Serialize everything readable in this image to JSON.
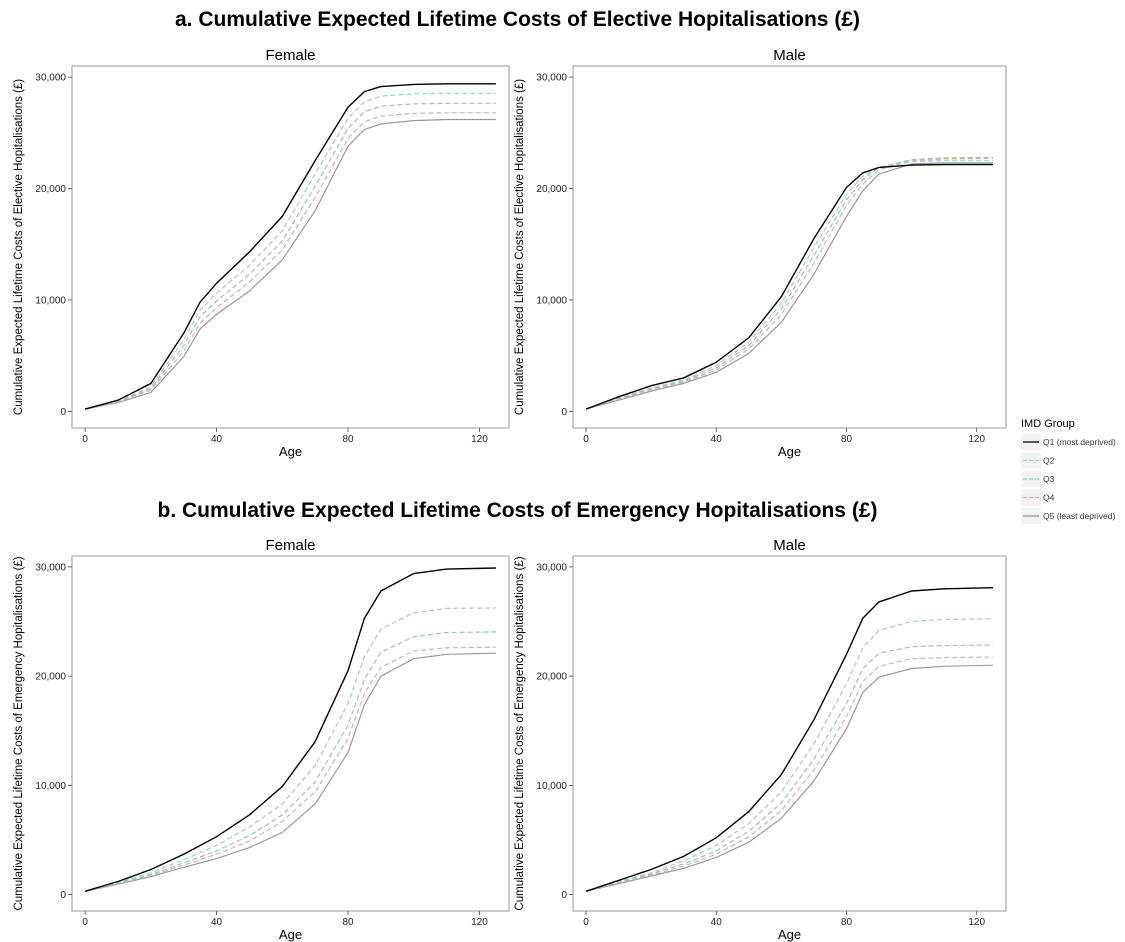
{
  "titles": {
    "a": "a. Cumulative Expected Lifetime Costs of Elective Hopitalisations (£)",
    "b": "b. Cumulative Expected Lifetime Costs of Emergency Hopitalisations (£)"
  },
  "legend": {
    "title": "IMD Group",
    "items": [
      {
        "label": "Q1 (most deprived)",
        "color": "#000000",
        "dash": "solid"
      },
      {
        "label": "Q2",
        "color": "#9ec9e8",
        "dash": "dashed"
      },
      {
        "label": "Q3",
        "color": "#8fd18f",
        "dash": "dashed"
      },
      {
        "label": "Q4",
        "color": "#e0a8b8",
        "dash": "dashed"
      },
      {
        "label": "Q5 (least deprived)",
        "color": "#999999",
        "dash": "solid"
      }
    ]
  },
  "chart_data": [
    {
      "type": "line",
      "group": "a",
      "facet": "Female",
      "xlabel": "Age",
      "ylabel": "Cumulative Expected Lifetime Costs of Elective Hopitalisations (£)",
      "xlim": [
        -4,
        129
      ],
      "ylim": [
        -1500,
        31000
      ],
      "xticks": [
        0,
        40,
        80,
        120
      ],
      "yticks": [
        0,
        10000,
        20000,
        30000
      ],
      "ytick_labels": [
        "0",
        "10,000",
        "20,000",
        "30,000"
      ],
      "x": [
        0,
        10,
        20,
        30,
        35,
        40,
        50,
        60,
        70,
        80,
        85,
        90,
        100,
        110,
        125
      ],
      "series": [
        {
          "name": "Q1 (most deprived)",
          "values": [
            200,
            1000,
            2500,
            7000,
            9800,
            11500,
            14300,
            17500,
            22500,
            27300,
            28700,
            29150,
            29350,
            29400,
            29400
          ]
        },
        {
          "name": "Q2",
          "values": [
            200,
            900,
            2200,
            6400,
            9100,
            10600,
            13100,
            16200,
            21300,
            26300,
            27800,
            28300,
            28500,
            28550,
            28550
          ]
        },
        {
          "name": "Q3",
          "values": [
            200,
            870,
            2050,
            5900,
            8500,
            9900,
            12300,
            15300,
            20200,
            25400,
            26900,
            27400,
            27600,
            27650,
            27650
          ]
        },
        {
          "name": "Q4",
          "values": [
            200,
            830,
            1900,
            5400,
            7900,
            9300,
            11600,
            14500,
            19200,
            24500,
            26000,
            26500,
            26750,
            26800,
            26800
          ]
        },
        {
          "name": "Q5 (least deprived)",
          "values": [
            200,
            780,
            1700,
            4900,
            7400,
            8700,
            10800,
            13600,
            18000,
            23800,
            25300,
            25800,
            26100,
            26200,
            26200
          ]
        }
      ]
    },
    {
      "type": "line",
      "group": "a",
      "facet": "Male",
      "xlabel": "Age",
      "ylabel": "Cumulative Expected Lifetime Costs of Elective Hopitalisations (£)",
      "xlim": [
        -4,
        129
      ],
      "ylim": [
        -1500,
        31000
      ],
      "xticks": [
        0,
        40,
        80,
        120
      ],
      "yticks": [
        0,
        10000,
        20000,
        30000
      ],
      "ytick_labels": [
        "0",
        "10,000",
        "20,000",
        "30,000"
      ],
      "x": [
        0,
        10,
        20,
        30,
        40,
        50,
        60,
        70,
        80,
        85,
        90,
        100,
        110,
        125
      ],
      "series": [
        {
          "name": "Q1 (most deprived)",
          "values": [
            200,
            1300,
            2300,
            3000,
            4400,
            6600,
            10300,
            15500,
            20100,
            21400,
            21900,
            22100,
            22150,
            22150
          ]
        },
        {
          "name": "Q2",
          "values": [
            200,
            1200,
            2100,
            2800,
            4100,
            6200,
            9700,
            14700,
            19500,
            21100,
            21900,
            22400,
            22500,
            22500
          ]
        },
        {
          "name": "Q3",
          "values": [
            200,
            1150,
            2000,
            2700,
            3900,
            5900,
            9200,
            14000,
            19000,
            20800,
            21900,
            22600,
            22750,
            22800
          ]
        },
        {
          "name": "Q4",
          "values": [
            200,
            1100,
            1900,
            2600,
            3700,
            5600,
            8700,
            13300,
            18500,
            20400,
            21700,
            22500,
            22650,
            22700
          ]
        },
        {
          "name": "Q5 (least deprived)",
          "values": [
            200,
            1000,
            1800,
            2500,
            3500,
            5200,
            8000,
            12300,
            17500,
            19800,
            21300,
            22200,
            22300,
            22300
          ]
        }
      ]
    },
    {
      "type": "line",
      "group": "b",
      "facet": "Female",
      "xlabel": "Age",
      "ylabel": "Cumulative Expected Lifetime Costs of Emergency Hopitalisations (£)",
      "xlim": [
        -4,
        129
      ],
      "ylim": [
        -1500,
        31000
      ],
      "xticks": [
        0,
        40,
        80,
        120
      ],
      "yticks": [
        0,
        10000,
        20000,
        30000
      ],
      "ytick_labels": [
        "0",
        "10,000",
        "20,000",
        "30,000"
      ],
      "x": [
        0,
        10,
        20,
        30,
        40,
        50,
        60,
        70,
        80,
        85,
        90,
        100,
        110,
        125
      ],
      "series": [
        {
          "name": "Q1 (most deprived)",
          "values": [
            300,
            1200,
            2300,
            3700,
            5300,
            7300,
            9900,
            14000,
            20500,
            25300,
            27800,
            29400,
            29800,
            29900
          ]
        },
        {
          "name": "Q2",
          "values": [
            300,
            1100,
            2000,
            3200,
            4500,
            6200,
            8300,
            11800,
            17500,
            21800,
            24300,
            25800,
            26200,
            26250
          ]
        },
        {
          "name": "Q3",
          "values": [
            300,
            1050,
            1850,
            2900,
            4000,
            5400,
            7300,
            10300,
            15500,
            19700,
            22200,
            23600,
            24000,
            24050
          ]
        },
        {
          "name": "Q4",
          "values": [
            300,
            1000,
            1750,
            2700,
            3700,
            4900,
            6700,
            9400,
            14300,
            18400,
            20800,
            22300,
            22600,
            22650
          ]
        },
        {
          "name": "Q5 (least deprived)",
          "values": [
            300,
            950,
            1650,
            2500,
            3300,
            4300,
            5700,
            8300,
            13000,
            17400,
            20000,
            21600,
            22000,
            22100
          ]
        }
      ]
    },
    {
      "type": "line",
      "group": "b",
      "facet": "Male",
      "xlabel": "Age",
      "ylabel": "Cumulative Expected Lifetime Costs of Emergency Hopitalisations (£)",
      "xlim": [
        -4,
        129
      ],
      "ylim": [
        -1500,
        31000
      ],
      "xticks": [
        0,
        40,
        80,
        120
      ],
      "yticks": [
        0,
        10000,
        20000,
        30000
      ],
      "ytick_labels": [
        "0",
        "10,000",
        "20,000",
        "30,000"
      ],
      "x": [
        0,
        10,
        20,
        30,
        40,
        50,
        60,
        70,
        80,
        85,
        90,
        100,
        110,
        125
      ],
      "series": [
        {
          "name": "Q1 (most deprived)",
          "values": [
            300,
            1300,
            2300,
            3500,
            5200,
            7600,
            11000,
            16000,
            22000,
            25300,
            26800,
            27800,
            28000,
            28100
          ]
        },
        {
          "name": "Q2",
          "values": [
            300,
            1200,
            2000,
            3100,
            4500,
            6500,
            9400,
            13800,
            19300,
            22600,
            24200,
            25000,
            25200,
            25250
          ]
        },
        {
          "name": "Q3",
          "values": [
            300,
            1150,
            1900,
            2800,
            4000,
            5800,
            8400,
            12400,
            17500,
            20700,
            22100,
            22700,
            22800,
            22850
          ]
        },
        {
          "name": "Q4",
          "values": [
            300,
            1100,
            1800,
            2600,
            3700,
            5300,
            7700,
            11400,
            16300,
            19500,
            20900,
            21600,
            21700,
            21750
          ]
        },
        {
          "name": "Q5 (least deprived)",
          "values": [
            300,
            1000,
            1700,
            2400,
            3400,
            4800,
            7000,
            10400,
            15200,
            18500,
            19900,
            20700,
            20900,
            21000
          ]
        }
      ]
    }
  ]
}
